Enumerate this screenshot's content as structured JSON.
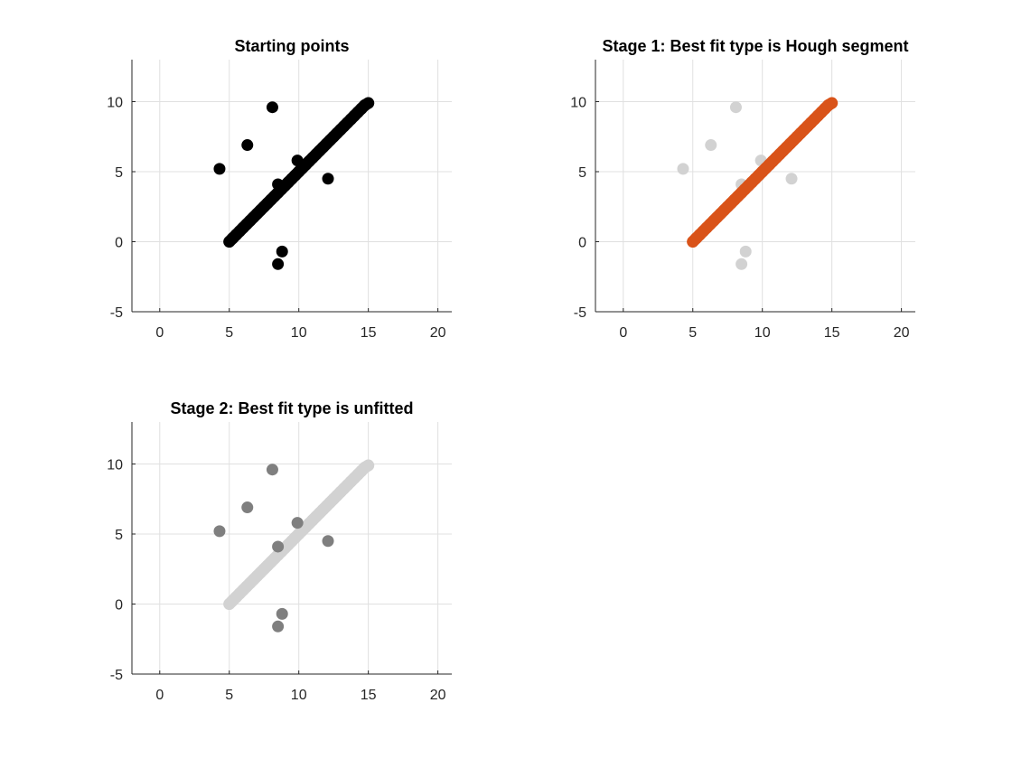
{
  "figure": {
    "background": "#ffffff"
  },
  "chart_data": [
    {
      "type": "scatter",
      "title": "Starting points",
      "xlabel": "",
      "ylabel": "",
      "xlim": [
        -2,
        21
      ],
      "ylim": [
        -5,
        13
      ],
      "xticks": [
        0,
        5,
        10,
        15,
        20
      ],
      "yticks": [
        -5,
        0,
        5,
        10
      ],
      "grid": true,
      "series": [
        {
          "role": "segment",
          "color": "#000000",
          "x": [
            5.0,
            5.25,
            5.5,
            5.75,
            6.0,
            6.25,
            6.5,
            6.75,
            7.0,
            7.25,
            7.5,
            7.75,
            8.0,
            8.25,
            8.5,
            8.75,
            9.0,
            9.25,
            9.5,
            9.75,
            10.0,
            10.25,
            10.5,
            10.75,
            11.0,
            11.25,
            11.5,
            11.75,
            12.0,
            12.25,
            12.5,
            12.75,
            13.0,
            13.25,
            13.5,
            13.75,
            14.0,
            14.25,
            14.5,
            14.75,
            15.0
          ],
          "y": [
            0.0,
            0.25,
            0.5,
            0.75,
            1.0,
            1.25,
            1.5,
            1.75,
            2.0,
            2.25,
            2.5,
            2.75,
            3.0,
            3.25,
            3.5,
            3.75,
            4.0,
            4.25,
            4.5,
            4.75,
            5.0,
            5.25,
            5.5,
            5.75,
            6.0,
            6.25,
            6.5,
            6.75,
            7.0,
            7.25,
            7.5,
            7.75,
            8.0,
            8.25,
            8.5,
            8.75,
            9.0,
            9.25,
            9.5,
            9.75,
            9.9
          ]
        },
        {
          "role": "outliers",
          "color": "#000000",
          "x": [
            4.3,
            6.3,
            8.1,
            8.5,
            9.9,
            12.1,
            8.8,
            8.5
          ],
          "y": [
            5.2,
            6.9,
            9.6,
            4.1,
            5.8,
            4.5,
            -0.7,
            -1.6
          ]
        }
      ]
    },
    {
      "type": "scatter",
      "title": "Stage 1: Best fit type is Hough segment",
      "xlabel": "",
      "ylabel": "",
      "xlim": [
        -2,
        21
      ],
      "ylim": [
        -5,
        13
      ],
      "xticks": [
        0,
        5,
        10,
        15,
        20
      ],
      "yticks": [
        -5,
        0,
        5,
        10
      ],
      "grid": true,
      "series": [
        {
          "role": "outliers",
          "color": "#d2d2d2",
          "x": [
            4.3,
            6.3,
            8.1,
            8.5,
            9.9,
            12.1,
            8.8,
            8.5
          ],
          "y": [
            5.2,
            6.9,
            9.6,
            4.1,
            5.8,
            4.5,
            -0.7,
            -1.6
          ]
        },
        {
          "role": "segment",
          "color": "#d95319",
          "x": [
            5.0,
            5.25,
            5.5,
            5.75,
            6.0,
            6.25,
            6.5,
            6.75,
            7.0,
            7.25,
            7.5,
            7.75,
            8.0,
            8.25,
            8.5,
            8.75,
            9.0,
            9.25,
            9.5,
            9.75,
            10.0,
            10.25,
            10.5,
            10.75,
            11.0,
            11.25,
            11.5,
            11.75,
            12.0,
            12.25,
            12.5,
            12.75,
            13.0,
            13.25,
            13.5,
            13.75,
            14.0,
            14.25,
            14.5,
            14.75,
            15.0
          ],
          "y": [
            0.0,
            0.25,
            0.5,
            0.75,
            1.0,
            1.25,
            1.5,
            1.75,
            2.0,
            2.25,
            2.5,
            2.75,
            3.0,
            3.25,
            3.5,
            3.75,
            4.0,
            4.25,
            4.5,
            4.75,
            5.0,
            5.25,
            5.5,
            5.75,
            6.0,
            6.25,
            6.5,
            6.75,
            7.0,
            7.25,
            7.5,
            7.75,
            8.0,
            8.25,
            8.5,
            8.75,
            9.0,
            9.25,
            9.5,
            9.75,
            9.9
          ]
        }
      ]
    },
    {
      "type": "scatter",
      "title": "Stage 2: Best fit type is unfitted",
      "xlabel": "",
      "ylabel": "",
      "xlim": [
        -2,
        21
      ],
      "ylim": [
        -5,
        13
      ],
      "xticks": [
        0,
        5,
        10,
        15,
        20
      ],
      "yticks": [
        -5,
        0,
        5,
        10
      ],
      "grid": true,
      "series": [
        {
          "role": "segment",
          "color": "#d2d2d2",
          "x": [
            5.0,
            5.25,
            5.5,
            5.75,
            6.0,
            6.25,
            6.5,
            6.75,
            7.0,
            7.25,
            7.5,
            7.75,
            8.0,
            8.25,
            8.5,
            8.75,
            9.0,
            9.25,
            9.5,
            9.75,
            10.0,
            10.25,
            10.5,
            10.75,
            11.0,
            11.25,
            11.5,
            11.75,
            12.0,
            12.25,
            12.5,
            12.75,
            13.0,
            13.25,
            13.5,
            13.75,
            14.0,
            14.25,
            14.5,
            14.75,
            15.0
          ],
          "y": [
            0.0,
            0.25,
            0.5,
            0.75,
            1.0,
            1.25,
            1.5,
            1.75,
            2.0,
            2.25,
            2.5,
            2.75,
            3.0,
            3.25,
            3.5,
            3.75,
            4.0,
            4.25,
            4.5,
            4.75,
            5.0,
            5.25,
            5.5,
            5.75,
            6.0,
            6.25,
            6.5,
            6.75,
            7.0,
            7.25,
            7.5,
            7.75,
            8.0,
            8.25,
            8.5,
            8.75,
            9.0,
            9.25,
            9.5,
            9.75,
            9.9
          ]
        },
        {
          "role": "outliers",
          "color": "#7f7f7f",
          "x": [
            4.3,
            6.3,
            8.1,
            8.5,
            9.9,
            12.1,
            8.8,
            8.5
          ],
          "y": [
            5.2,
            6.9,
            9.6,
            4.1,
            5.8,
            4.5,
            -0.7,
            -1.6
          ]
        }
      ]
    }
  ]
}
